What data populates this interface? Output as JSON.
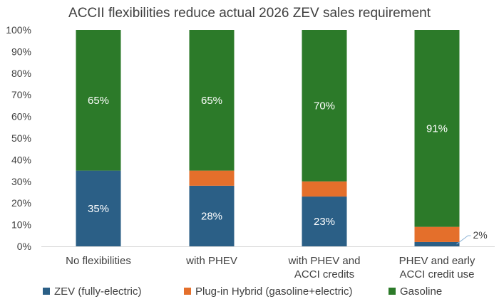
{
  "chart_data": {
    "type": "bar",
    "stacked": true,
    "title": "ACCII flexibilities reduce actual 2026 ZEV sales requirement",
    "xlabel": "",
    "ylabel": "",
    "ylim": [
      0,
      100
    ],
    "yticks": [
      "0%",
      "10%",
      "20%",
      "30%",
      "40%",
      "50%",
      "60%",
      "70%",
      "80%",
      "90%",
      "100%"
    ],
    "categories": [
      [
        "No flexibilities"
      ],
      [
        "with PHEV"
      ],
      [
        "with PHEV and",
        "ACCI credits"
      ],
      [
        "PHEV and early",
        "ACCI credit use"
      ]
    ],
    "series": [
      {
        "name": "ZEV (fully-electric)",
        "color": "#2b5f86",
        "values": [
          35,
          28,
          23,
          2
        ],
        "labels": [
          "35%",
          "28%",
          "23%",
          "2%"
        ]
      },
      {
        "name": "Plug-in Hybrid (gasoline+electric)",
        "color": "#e46f2b",
        "values": [
          0,
          7,
          7,
          7
        ],
        "labels": [
          "",
          "",
          "",
          ""
        ]
      },
      {
        "name": "Gasoline",
        "color": "#2c7a29",
        "values": [
          65,
          65,
          70,
          91
        ],
        "labels": [
          "65%",
          "65%",
          "70%",
          "91%"
        ]
      }
    ],
    "legend": "bottom"
  }
}
